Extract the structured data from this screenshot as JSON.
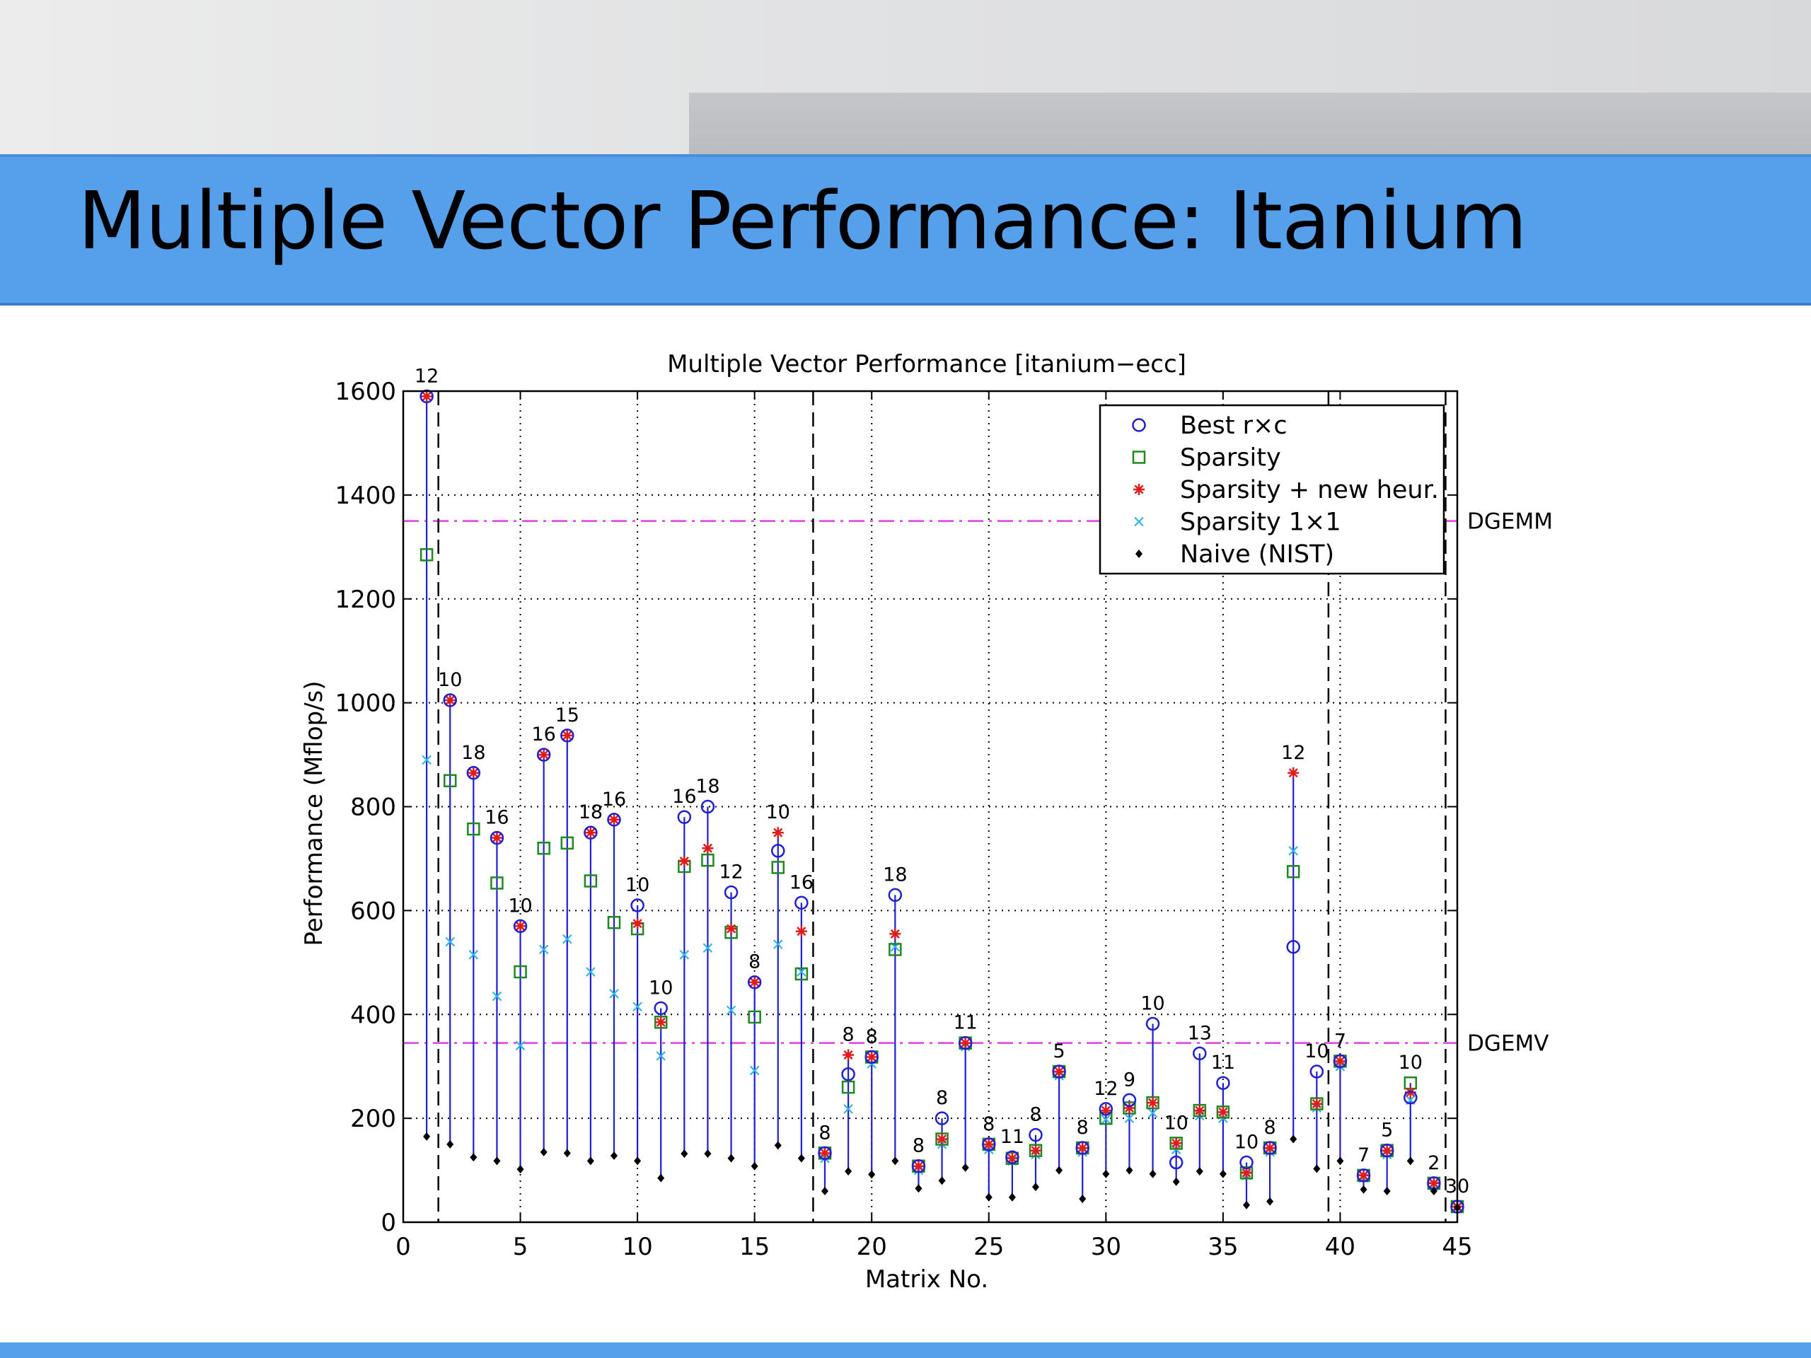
{
  "slide": {
    "title": "Multiple Vector Performance: Itanium"
  },
  "colors": {
    "title_bar": "#569fea",
    "best": "#1f1fd6",
    "sparsity": "#1e8a1e",
    "newheur": "#e01b1b",
    "one_by_one": "#33b5e6",
    "naive": "#000000",
    "ref_line": "#e23ee2"
  },
  "chart_data": {
    "type": "scatter",
    "title": "Multiple Vector Performance [itanium−ecc]",
    "xlabel": "Matrix No.",
    "ylabel": "Performance (Mflop/s)",
    "xlim": [
      0,
      45
    ],
    "ylim": [
      0,
      1600
    ],
    "xticks": [
      0,
      5,
      10,
      15,
      20,
      25,
      30,
      35,
      40,
      45
    ],
    "yticks": [
      0,
      200,
      400,
      600,
      800,
      1000,
      1200,
      1400,
      1600
    ],
    "grid": true,
    "legend_position": "top-right",
    "legend": [
      {
        "key": "best",
        "label": "Best r×c",
        "marker": "circle"
      },
      {
        "key": "sparsity",
        "label": "Sparsity",
        "marker": "square"
      },
      {
        "key": "newheur",
        "label": "Sparsity + new heur.",
        "marker": "star"
      },
      {
        "key": "one_by_one",
        "label": "Sparsity 1×1",
        "marker": "x"
      },
      {
        "key": "naive",
        "label": "Naive (NIST)",
        "marker": "dot"
      }
    ],
    "reference_lines": [
      {
        "label": "DGEMM",
        "y": 1350
      },
      {
        "label": "DGEMV",
        "y": 345
      }
    ],
    "vertical_separators": [
      1.5,
      17.5,
      39.5,
      44.5
    ],
    "points": [
      {
        "x": 1,
        "label": "12",
        "best": 1590,
        "sparsity": 1285,
        "newheur": 1590,
        "one_by_one": 890,
        "naive": 165
      },
      {
        "x": 2,
        "label": "10",
        "best": 1005,
        "sparsity": 850,
        "newheur": 1005,
        "one_by_one": 540,
        "naive": 150
      },
      {
        "x": 3,
        "label": "18",
        "best": 865,
        "sparsity": 757,
        "newheur": 865,
        "one_by_one": 515,
        "naive": 125
      },
      {
        "x": 4,
        "label": "16",
        "best": 740,
        "sparsity": 653,
        "newheur": 740,
        "one_by_one": 435,
        "naive": 118
      },
      {
        "x": 5,
        "label": "10",
        "best": 570,
        "sparsity": 482,
        "newheur": 570,
        "one_by_one": 340,
        "naive": 102
      },
      {
        "x": 6,
        "label": "16",
        "best": 900,
        "sparsity": 720,
        "newheur": 900,
        "one_by_one": 525,
        "naive": 135
      },
      {
        "x": 7,
        "label": "15",
        "best": 937,
        "sparsity": 730,
        "newheur": 937,
        "one_by_one": 545,
        "naive": 133
      },
      {
        "x": 8,
        "label": "18",
        "best": 750,
        "sparsity": 657,
        "newheur": 750,
        "one_by_one": 482,
        "naive": 118
      },
      {
        "x": 9,
        "label": "16",
        "best": 775,
        "sparsity": 577,
        "newheur": 775,
        "one_by_one": 440,
        "naive": 128
      },
      {
        "x": 10,
        "label": "10",
        "best": 610,
        "sparsity": 565,
        "newheur": 575,
        "one_by_one": 415,
        "naive": 118
      },
      {
        "x": 11,
        "label": "10",
        "best": 412,
        "sparsity": 385,
        "newheur": 385,
        "one_by_one": 320,
        "naive": 85
      },
      {
        "x": 12,
        "label": "16",
        "best": 780,
        "sparsity": 685,
        "newheur": 695,
        "one_by_one": 515,
        "naive": 132
      },
      {
        "x": 13,
        "label": "18",
        "best": 800,
        "sparsity": 697,
        "newheur": 720,
        "one_by_one": 528,
        "naive": 132
      },
      {
        "x": 14,
        "label": "12",
        "best": 635,
        "sparsity": 558,
        "newheur": 565,
        "one_by_one": 408,
        "naive": 123
      },
      {
        "x": 15,
        "label": "8",
        "best": 462,
        "sparsity": 395,
        "newheur": 462,
        "one_by_one": 292,
        "naive": 108
      },
      {
        "x": 16,
        "label": "10",
        "best": 715,
        "sparsity": 683,
        "newheur": 750,
        "one_by_one": 535,
        "naive": 148
      },
      {
        "x": 17,
        "label": "16",
        "best": 615,
        "sparsity": 478,
        "newheur": 560,
        "one_by_one": 482,
        "naive": 123
      },
      {
        "x": 18,
        "label": "8",
        "best": 133,
        "sparsity": 133,
        "newheur": 133,
        "one_by_one": 123,
        "naive": 60
      },
      {
        "x": 19,
        "label": "8",
        "best": 285,
        "sparsity": 260,
        "newheur": 322,
        "one_by_one": 218,
        "naive": 98
      },
      {
        "x": 20,
        "label": "8",
        "best": 318,
        "sparsity": 318,
        "newheur": 318,
        "one_by_one": 305,
        "naive": 92
      },
      {
        "x": 21,
        "label": "18",
        "best": 630,
        "sparsity": 525,
        "newheur": 555,
        "one_by_one": 530,
        "naive": 118
      },
      {
        "x": 22,
        "label": "8",
        "best": 108,
        "sparsity": 108,
        "newheur": 108,
        "one_by_one": 100,
        "naive": 65
      },
      {
        "x": 23,
        "label": "8",
        "best": 200,
        "sparsity": 160,
        "newheur": 160,
        "one_by_one": 150,
        "naive": 80
      },
      {
        "x": 24,
        "label": "11",
        "best": 345,
        "sparsity": 345,
        "newheur": 345,
        "one_by_one": 338,
        "naive": 105
      },
      {
        "x": 25,
        "label": "8",
        "best": 150,
        "sparsity": 150,
        "newheur": 150,
        "one_by_one": 140,
        "naive": 48
      },
      {
        "x": 26,
        "label": "11",
        "best": 125,
        "sparsity": 123,
        "newheur": 123,
        "one_by_one": 118,
        "naive": 48
      },
      {
        "x": 27,
        "label": "8",
        "best": 168,
        "sparsity": 138,
        "newheur": 138,
        "one_by_one": 130,
        "naive": 68
      },
      {
        "x": 28,
        "label": "5",
        "best": 290,
        "sparsity": 290,
        "newheur": 290,
        "one_by_one": 282,
        "naive": 100
      },
      {
        "x": 29,
        "label": "8",
        "best": 143,
        "sparsity": 143,
        "newheur": 143,
        "one_by_one": 135,
        "naive": 45
      },
      {
        "x": 30,
        "label": "12",
        "best": 218,
        "sparsity": 200,
        "newheur": 215,
        "one_by_one": 198,
        "naive": 93
      },
      {
        "x": 31,
        "label": "9",
        "best": 235,
        "sparsity": 220,
        "newheur": 220,
        "one_by_one": 200,
        "naive": 100
      },
      {
        "x": 32,
        "label": "10",
        "best": 382,
        "sparsity": 230,
        "newheur": 230,
        "one_by_one": 210,
        "naive": 93
      },
      {
        "x": 33,
        "label": "10",
        "best": 115,
        "sparsity": 152,
        "newheur": 152,
        "one_by_one": 140,
        "naive": 78
      },
      {
        "x": 34,
        "label": "13",
        "best": 325,
        "sparsity": 215,
        "newheur": 215,
        "one_by_one": 205,
        "naive": 98
      },
      {
        "x": 35,
        "label": "11",
        "best": 268,
        "sparsity": 212,
        "newheur": 212,
        "one_by_one": 200,
        "naive": 93
      },
      {
        "x": 36,
        "label": "10",
        "best": 115,
        "sparsity": 95,
        "newheur": 95,
        "one_by_one": 90,
        "naive": 33
      },
      {
        "x": 37,
        "label": "8",
        "best": 143,
        "sparsity": 143,
        "newheur": 143,
        "one_by_one": 135,
        "naive": 40
      },
      {
        "x": 38,
        "label": "12",
        "best": 530,
        "sparsity": 675,
        "newheur": 865,
        "one_by_one": 715,
        "naive": 160
      },
      {
        "x": 39,
        "label": "10",
        "best": 290,
        "sparsity": 228,
        "newheur": 228,
        "one_by_one": 220,
        "naive": 103
      },
      {
        "x": 40,
        "label": "7",
        "best": 310,
        "sparsity": 310,
        "newheur": 310,
        "one_by_one": 300,
        "naive": 118
      },
      {
        "x": 41,
        "label": "7",
        "best": 90,
        "sparsity": 90,
        "newheur": 90,
        "one_by_one": 85,
        "naive": 63
      },
      {
        "x": 42,
        "label": "5",
        "best": 138,
        "sparsity": 138,
        "newheur": 138,
        "one_by_one": 130,
        "naive": 60
      },
      {
        "x": 43,
        "label": "10",
        "best": 240,
        "sparsity": 268,
        "newheur": 250,
        "one_by_one": 235,
        "naive": 118
      },
      {
        "x": 44,
        "label": "2",
        "best": 75,
        "sparsity": 75,
        "newheur": 75,
        "one_by_one": 70,
        "naive": 60
      },
      {
        "x": 45,
        "label": "30",
        "best": 30,
        "sparsity": 30,
        "newheur": 30,
        "one_by_one": 28,
        "naive": 28
      }
    ]
  }
}
